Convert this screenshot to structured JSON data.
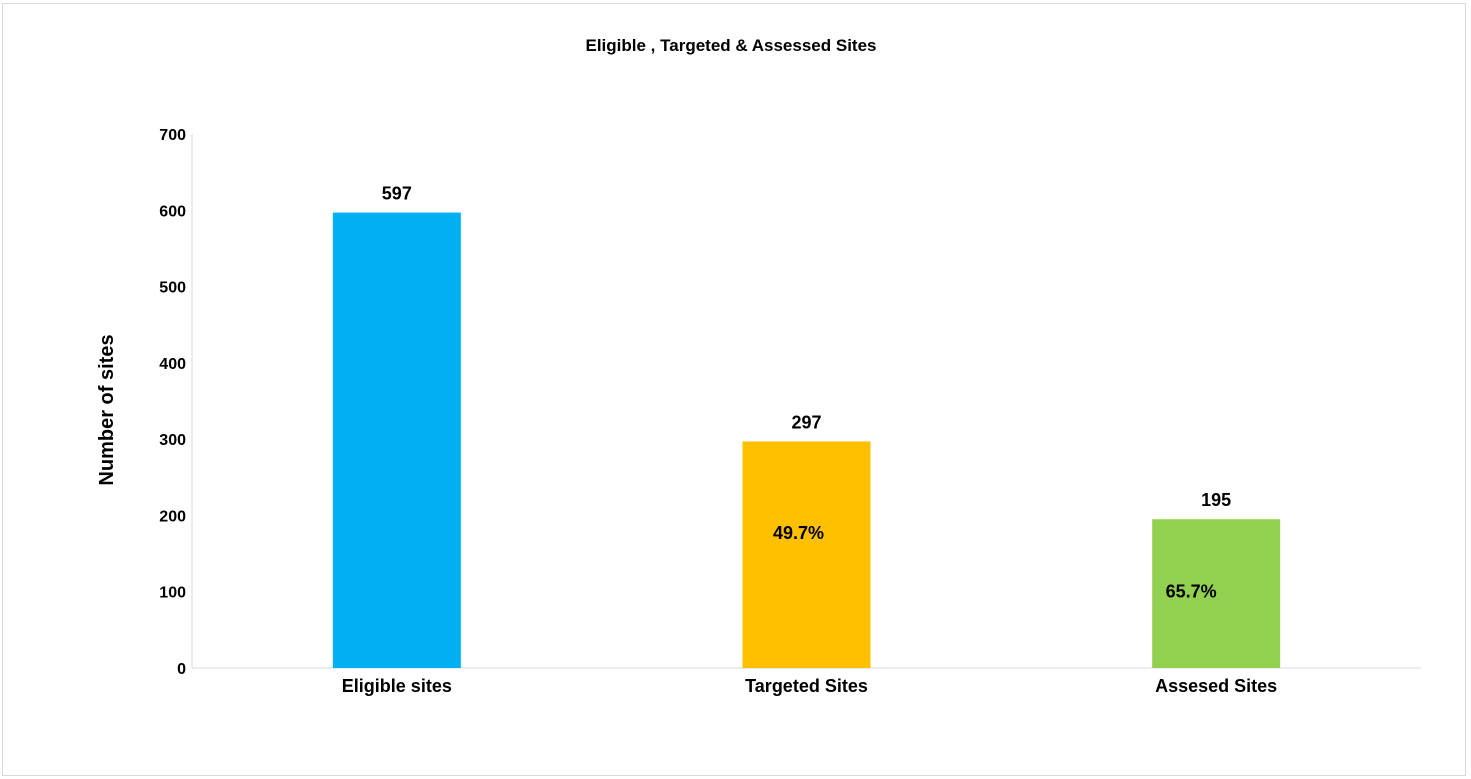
{
  "chart_data": {
    "type": "bar",
    "title": "Eligible , Targeted & Assessed Sites",
    "xlabel": "",
    "ylabel": "Number of sites",
    "categories": [
      "Eligible sites",
      "Targeted Sites",
      "Assesed Sites"
    ],
    "values": [
      597,
      297,
      195
    ],
    "data_labels": [
      "597",
      "297",
      "195"
    ],
    "inner_labels": [
      "",
      "49.7%",
      "65.7%"
    ],
    "colors": [
      "#00b0f0",
      "#ffc000",
      "#92d050"
    ],
    "ylim": [
      0,
      700
    ],
    "yticks": [
      0,
      100,
      200,
      300,
      400,
      500,
      600,
      700
    ],
    "grid": false,
    "legend": "none"
  }
}
